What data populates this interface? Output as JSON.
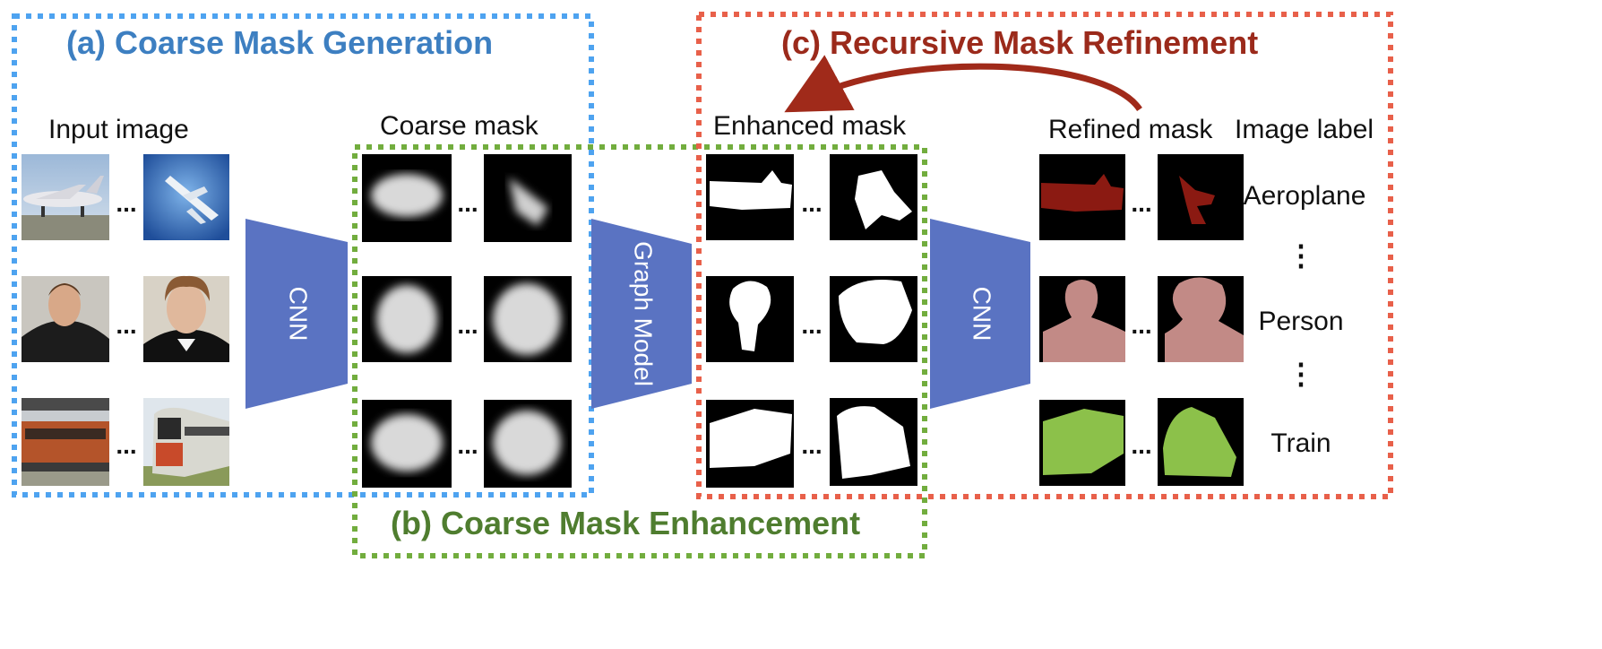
{
  "titles": {
    "a": "(a) Coarse Mask Generation",
    "b": "(b) Coarse Mask Enhancement",
    "c": "(c) Recursive Mask Refinement"
  },
  "column_labels": {
    "input": "Input image",
    "coarse": "Coarse mask",
    "enhanced": "Enhanced mask",
    "refined": "Refined mask",
    "image_label": "Image label"
  },
  "blocks": {
    "cnn_1": "CNN",
    "graph": "Graph Model",
    "cnn_2": "CNN"
  },
  "ellipsis": "...",
  "vertical_ellipsis": "⋮",
  "classes": [
    "Aeroplane",
    "Person",
    "Train"
  ],
  "colors": {
    "frame_a": "#4ea3f0",
    "frame_b": "#72ad3e",
    "frame_c": "#e8604a",
    "title_a": "#3d7fc1",
    "title_b": "#4f7d2f",
    "title_c": "#9b2a1b",
    "block": "#5a73c2",
    "arrow": "#a02a1a",
    "aeroplane_mask": "#8b1a12",
    "person_mask": "#c28a86",
    "train_mask": "#8cc14a"
  },
  "icons": {
    "thumbnails": "image-thumbnail-icon",
    "arrow": "curved-arrow-icon"
  }
}
